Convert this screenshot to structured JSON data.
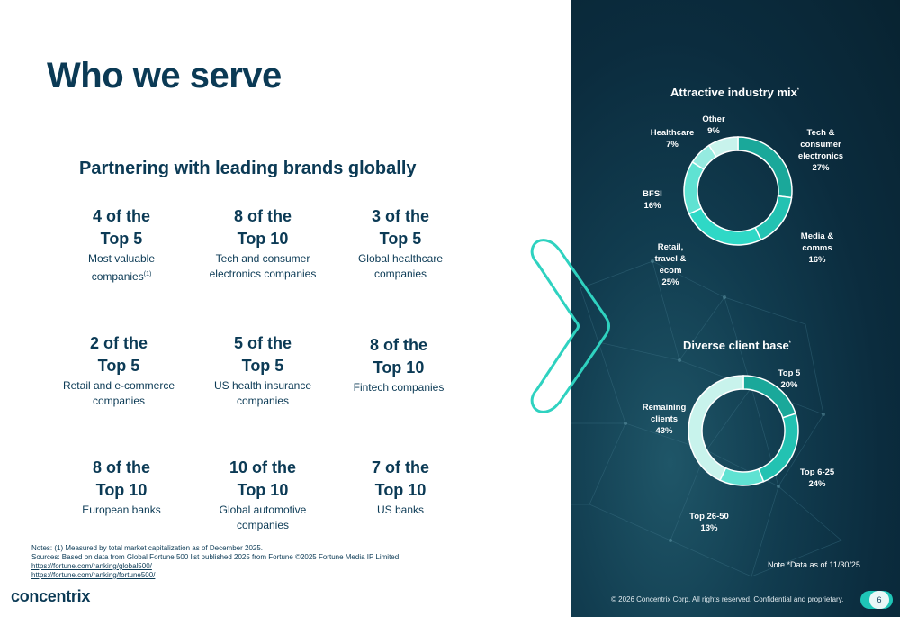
{
  "title": "Who we serve",
  "subtitle": "Partnering with leading brands globally",
  "stats": [
    {
      "l1": "4 of the",
      "l2": "Top 5",
      "d1": "Most valuable",
      "d2": "companies",
      "sup": "(1)"
    },
    {
      "l1": "8 of the",
      "l2": "Top 10",
      "d1": "Tech and consumer",
      "d2": "electronics companies"
    },
    {
      "l1": "3 of the",
      "l2": "Top 5",
      "d1": "Global healthcare",
      "d2": "companies"
    },
    {
      "l1": "2 of the",
      "l2": "Top 5",
      "d1": "Retail and e-commerce",
      "d2": "companies"
    },
    {
      "l1": "5 of the",
      "l2": "Top 5",
      "d1": "US health insurance",
      "d2": "companies"
    },
    {
      "l1": "8 of the",
      "l2": "Top 10",
      "d1": "Fintech companies"
    },
    {
      "l1": "8 of the",
      "l2": "Top 10",
      "d1": "European banks"
    },
    {
      "l1": "10 of the",
      "l2": "Top 10",
      "d1": "Global automotive",
      "d2": "companies"
    },
    {
      "l1": "7 of the",
      "l2": "Top 10",
      "d1": "US banks"
    }
  ],
  "notes": {
    "line1": "Notes: (1) Measured by total market capitalization as of December 2025.",
    "line2": "Sources: Based on data from Global Fortune 500 list published 2025 from Fortune ©2025 Fortune Media IP Limited.",
    "link1": "https://fortune.com/ranking/global500/",
    "link2": "https://fortune.com/ranking/fortune500/"
  },
  "logo": "concentrix",
  "chart_data": [
    {
      "type": "pie",
      "title": "Attractive industry mix",
      "title_sup": "*",
      "slices": [
        {
          "l1": "Tech &",
          "l2": "consumer",
          "l3": "electronics",
          "value_label": "27%",
          "value": 27,
          "color": "#1aa89a"
        },
        {
          "l1": "Media &",
          "l2": "comms",
          "value_label": "16%",
          "value": 16,
          "color": "#23c2b2"
        },
        {
          "l1": "Retail,",
          "l2": "travel &",
          "l3": "ecom",
          "value_label": "25%",
          "value": 25,
          "color": "#2fd8c6"
        },
        {
          "l1": "BFSI",
          "value_label": "16%",
          "value": 16,
          "color": "#5fe2d2"
        },
        {
          "l1": "Healthcare",
          "value_label": "7%",
          "value": 7,
          "color": "#95ebe0"
        },
        {
          "l1": "Other",
          "value_label": "9%",
          "value": 9,
          "color": "#c8f3ec"
        }
      ]
    },
    {
      "type": "pie",
      "title": "Diverse client base",
      "title_sup": "*",
      "slices": [
        {
          "l1": "Top 5",
          "value_label": "20%",
          "value": 20,
          "color": "#1aa89a"
        },
        {
          "l1": "Top 6-25",
          "value_label": "24%",
          "value": 24,
          "color": "#23c2b2"
        },
        {
          "l1": "Top 26-50",
          "value_label": "13%",
          "value": 13,
          "color": "#5fe2d2"
        },
        {
          "l1": "Remaining",
          "l2": "clients",
          "value_label": "43%",
          "value": 43,
          "color": "#c8f3ec"
        }
      ]
    }
  ],
  "note_data": "Note *Data as of  11/30/25.",
  "footer": "© 2026 Concentrix Corp. All rights reserved. Confidential and proprietary.",
  "page_number": "6"
}
